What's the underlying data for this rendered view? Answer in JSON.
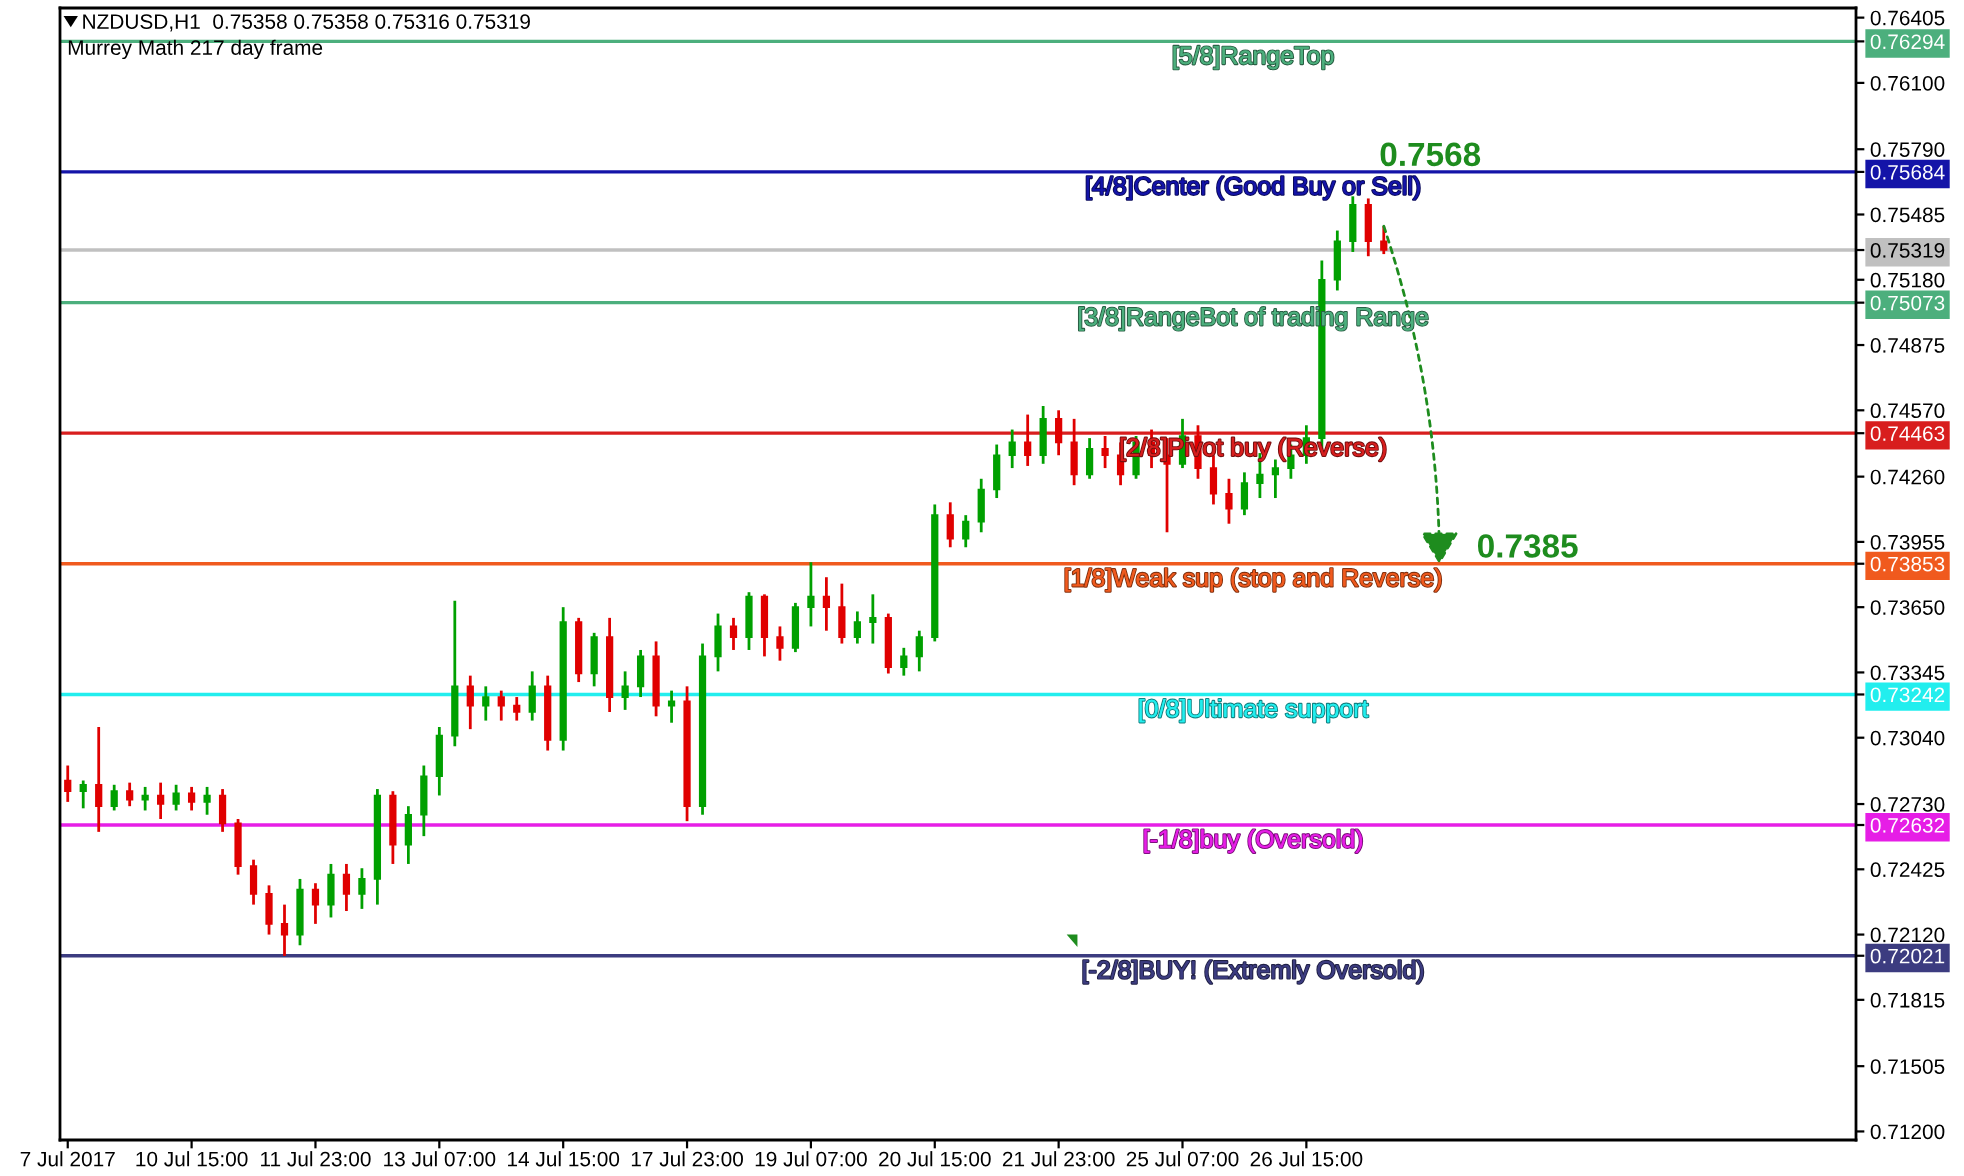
{
  "chart_data": {
    "type": "candlestick",
    "title": "NZDUSD,H1  0.75358 0.75358 0.75316 0.75319",
    "subtitle": "Murrey Math 217 day frame",
    "categories": [
      "7 Jul 2017",
      null,
      null,
      null,
      null,
      null,
      null,
      null,
      "10 Jul 15:00",
      null,
      null,
      null,
      null,
      null,
      null,
      null,
      "11 Jul 23:00",
      null,
      null,
      null,
      null,
      null,
      null,
      null,
      "13 Jul 07:00",
      null,
      null,
      null,
      null,
      null,
      null,
      null,
      "14 Jul 15:00",
      null,
      null,
      null,
      null,
      null,
      null,
      null,
      "17 Jul 23:00",
      null,
      null,
      null,
      null,
      null,
      null,
      null,
      "19 Jul 07:00",
      null,
      null,
      null,
      null,
      null,
      null,
      null,
      "20 Jul 15:00",
      null,
      null,
      null,
      null,
      null,
      null,
      null,
      "21 Jul 23:00",
      null,
      null,
      null,
      null,
      null,
      null,
      null,
      "25 Jul 07:00",
      null,
      null,
      null,
      null,
      null,
      null,
      null,
      "26 Jul 15:00",
      null,
      null,
      null,
      null,
      null,
      null,
      null,
      null,
      null,
      null,
      null,
      null,
      null,
      null,
      null,
      null,
      null,
      null,
      null,
      null,
      null,
      null,
      null,
      null,
      null,
      null,
      null,
      null,
      null,
      null,
      null,
      null,
      null,
      null,
      null
    ],
    "ohlc": [
      [
        0.7284,
        0.7291,
        0.7274,
        0.7279
      ],
      [
        0.7279,
        0.7284,
        0.7271,
        0.7282
      ],
      [
        0.7282,
        0.7309,
        0.726,
        0.7272
      ],
      [
        0.7272,
        0.7282,
        0.727,
        0.7279
      ],
      [
        0.7279,
        0.7283,
        0.7272,
        0.7275
      ],
      [
        0.7275,
        0.7281,
        0.727,
        0.7277
      ],
      [
        0.7277,
        0.7283,
        0.7266,
        0.7273
      ],
      [
        0.7273,
        0.7282,
        0.727,
        0.7278
      ],
      [
        0.7278,
        0.7281,
        0.727,
        0.7274
      ],
      [
        0.7274,
        0.7281,
        0.7268,
        0.7277
      ],
      [
        0.7277,
        0.728,
        0.726,
        0.7264
      ],
      [
        0.7264,
        0.7266,
        0.724,
        0.7244
      ],
      [
        0.7244,
        0.7247,
        0.7226,
        0.7231
      ],
      [
        0.7231,
        0.7235,
        0.7212,
        0.7217
      ],
      [
        0.7217,
        0.7226,
        0.7202,
        0.7212
      ],
      [
        0.7212,
        0.7238,
        0.7207,
        0.7233
      ],
      [
        0.7233,
        0.7236,
        0.7217,
        0.7226
      ],
      [
        0.7226,
        0.7245,
        0.722,
        0.724
      ],
      [
        0.724,
        0.7245,
        0.7223,
        0.7231
      ],
      [
        0.7231,
        0.7243,
        0.7224,
        0.7238
      ],
      [
        0.7238,
        0.728,
        0.7226,
        0.7277
      ],
      [
        0.7277,
        0.7279,
        0.7245,
        0.7254
      ],
      [
        0.7254,
        0.7272,
        0.7245,
        0.7268
      ],
      [
        0.7268,
        0.7291,
        0.7258,
        0.7286
      ],
      [
        0.7286,
        0.7309,
        0.7277,
        0.7305
      ],
      [
        0.7305,
        0.7368,
        0.73,
        0.7328
      ],
      [
        0.7328,
        0.7333,
        0.7308,
        0.7319
      ],
      [
        0.7319,
        0.7328,
        0.7312,
        0.7323
      ],
      [
        0.7323,
        0.7326,
        0.7312,
        0.7319
      ],
      [
        0.7319,
        0.7323,
        0.7312,
        0.7316
      ],
      [
        0.7316,
        0.7335,
        0.7312,
        0.7328
      ],
      [
        0.7328,
        0.7333,
        0.7298,
        0.7303
      ],
      [
        0.7303,
        0.7365,
        0.7298,
        0.7358
      ],
      [
        0.7358,
        0.736,
        0.733,
        0.7334
      ],
      [
        0.7334,
        0.7353,
        0.7328,
        0.7351
      ],
      [
        0.7351,
        0.736,
        0.7316,
        0.7323
      ],
      [
        0.7323,
        0.7335,
        0.7317,
        0.7328
      ],
      [
        0.7328,
        0.7345,
        0.7323,
        0.7342
      ],
      [
        0.7342,
        0.7349,
        0.7314,
        0.7319
      ],
      [
        0.7319,
        0.7326,
        0.7311,
        0.7321
      ],
      [
        0.7321,
        0.7328,
        0.7265,
        0.7272
      ],
      [
        0.7272,
        0.7348,
        0.7268,
        0.7342
      ],
      [
        0.7342,
        0.7362,
        0.7335,
        0.7356
      ],
      [
        0.7356,
        0.736,
        0.7345,
        0.7351
      ],
      [
        0.7351,
        0.7372,
        0.7345,
        0.737
      ],
      [
        0.737,
        0.7371,
        0.7342,
        0.7351
      ],
      [
        0.7351,
        0.7356,
        0.734,
        0.7346
      ],
      [
        0.7346,
        0.7367,
        0.7344,
        0.7365
      ],
      [
        0.7365,
        0.7386,
        0.7356,
        0.737
      ],
      [
        0.737,
        0.7379,
        0.7354,
        0.7365
      ],
      [
        0.7365,
        0.7376,
        0.7348,
        0.7351
      ],
      [
        0.7351,
        0.7363,
        0.7348,
        0.7358
      ],
      [
        0.7358,
        0.7371,
        0.7348,
        0.736
      ],
      [
        0.736,
        0.7362,
        0.7334,
        0.7337
      ],
      [
        0.7337,
        0.7346,
        0.7333,
        0.7342
      ],
      [
        0.7342,
        0.7354,
        0.7335,
        0.7351
      ],
      [
        0.7351,
        0.7413,
        0.7349,
        0.7408
      ],
      [
        0.7408,
        0.7414,
        0.7393,
        0.7397
      ],
      [
        0.7397,
        0.7408,
        0.7393,
        0.7405
      ],
      [
        0.7405,
        0.7425,
        0.74,
        0.742
      ],
      [
        0.742,
        0.7441,
        0.7416,
        0.7436
      ],
      [
        0.7436,
        0.7448,
        0.743,
        0.7442
      ],
      [
        0.7442,
        0.7455,
        0.7431,
        0.7436
      ],
      [
        0.7436,
        0.7459,
        0.7432,
        0.7453
      ],
      [
        0.7453,
        0.7457,
        0.7436,
        0.7442
      ],
      [
        0.7442,
        0.7453,
        0.7422,
        0.7427
      ],
      [
        0.7427,
        0.7444,
        0.7425,
        0.7439
      ],
      [
        0.7439,
        0.7445,
        0.743,
        0.7436
      ],
      [
        0.7436,
        0.7442,
        0.7422,
        0.7427
      ],
      [
        0.7427,
        0.7445,
        0.7425,
        0.7442
      ],
      [
        0.7442,
        0.7448,
        0.743,
        0.7436
      ],
      [
        0.7436,
        0.7444,
        0.74,
        0.7432
      ],
      [
        0.7432,
        0.7453,
        0.743,
        0.7445
      ],
      [
        0.7445,
        0.745,
        0.7425,
        0.743
      ],
      [
        0.743,
        0.7436,
        0.7413,
        0.7418
      ],
      [
        0.7418,
        0.7425,
        0.7404,
        0.7411
      ],
      [
        0.7411,
        0.7428,
        0.7408,
        0.7423
      ],
      [
        0.7423,
        0.7437,
        0.7416,
        0.7427
      ],
      [
        0.7427,
        0.7434,
        0.7416,
        0.743
      ],
      [
        0.743,
        0.7441,
        0.7425,
        0.7436
      ],
      [
        0.7436,
        0.745,
        0.7432,
        0.7444
      ],
      [
        0.7444,
        0.7527,
        0.7439,
        0.7518
      ],
      [
        0.7518,
        0.7541,
        0.7513,
        0.7536
      ],
      [
        0.7536,
        0.7557,
        0.7531,
        0.7553
      ],
      [
        0.7553,
        0.7556,
        0.7529,
        0.7536
      ],
      [
        0.7536,
        0.7543,
        0.753,
        0.7532
      ],
      null,
      null,
      null,
      null,
      null,
      null,
      null,
      null,
      null,
      null,
      null,
      null,
      null,
      null,
      null,
      null,
      null,
      null,
      null,
      null,
      null,
      null,
      null,
      null,
      null,
      null,
      null,
      null,
      null,
      null
    ],
    "colors": [
      "#e00000",
      "#00a000",
      "#e00000",
      "#00a000",
      "#e00000",
      "#00a000",
      "#e00000",
      "#00a000",
      "#e00000",
      "#00a000",
      "#e00000",
      "#e00000",
      "#e00000",
      "#e00000",
      "#e00000",
      "#00a000",
      "#e00000",
      "#00a000",
      "#e00000",
      "#00a000",
      "#00a000",
      "#e00000",
      "#00a000",
      "#00a000",
      "#00a000",
      "#00a000",
      "#e00000",
      "#00a000",
      "#e00000",
      "#e00000",
      "#00a000",
      "#e00000",
      "#00a000",
      "#e00000",
      "#00a000",
      "#e00000",
      "#00a000",
      "#00a000",
      "#e00000",
      "#00a000",
      "#e00000",
      "#00a000",
      "#00a000",
      "#e00000",
      "#00a000",
      "#e00000",
      "#e00000",
      "#00a000",
      "#00a000",
      "#e00000",
      "#e00000",
      "#00a000",
      "#00a000",
      "#e00000",
      "#00a000",
      "#00a000",
      "#00a000",
      "#e00000",
      "#00a000",
      "#00a000",
      "#00a000",
      "#00a000",
      "#e00000",
      "#00a000",
      "#e00000",
      "#e00000",
      "#00a000",
      "#e00000",
      "#e00000",
      "#00a000",
      "#e00000",
      "#e00000",
      "#00a000",
      "#e00000",
      "#e00000",
      "#e00000",
      "#00a000",
      "#00a000",
      "#00a000",
      "#00a000",
      "#00a000",
      "#00a000",
      "#00a000",
      "#00a000",
      "#e00000",
      "#e00000",
      null,
      null,
      null,
      null,
      null,
      null,
      null,
      null,
      null,
      null,
      null,
      null,
      null,
      null,
      null,
      null,
      null,
      null,
      null,
      null,
      null,
      null,
      null,
      null,
      null,
      null,
      null,
      null,
      null,
      null
    ],
    "ylim": [
      0.7116,
      0.7645
    ],
    "yticks": [
      0.76405,
      0.76294,
      0.75684,
      0.75319,
      0.75073,
      0.74463,
      0.73853,
      0.73242,
      0.72632,
      0.72021,
      {
        "value": 0.761,
        "label": "0.76100"
      },
      {
        "value": 0.7579,
        "label": "0.75790"
      },
      0.75485,
      {
        "value": 0.7518,
        "label": "0.75180"
      },
      0.74875,
      {
        "value": 0.7457,
        "label": "0.74570"
      },
      {
        "value": 0.7426,
        "label": "0.74260"
      },
      0.73955,
      {
        "value": 0.7365,
        "label": "0.73650"
      },
      0.73345,
      {
        "value": 0.7304,
        "label": "0.73040"
      },
      {
        "value": 0.7273,
        "label": "0.72730"
      },
      0.72425,
      {
        "value": 0.7212,
        "label": "0.72120"
      },
      0.71815,
      0.71505,
      {
        "value": 0.712,
        "label": "0.71200"
      }
    ],
    "ref_lines": [
      {
        "axis": "y",
        "value": 0.76294,
        "label": "[5/8]RangeTop",
        "color": "#4caf7d"
      },
      {
        "axis": "y",
        "value": 0.75684,
        "label": "[4/8]Center (Good Buy or Sell)",
        "color": "#1414a8"
      },
      {
        "axis": "y",
        "value": 0.75319,
        "label": null,
        "color": "#c0c0c0"
      },
      {
        "axis": "y",
        "value": 0.75073,
        "label": "[3/8]RangeBot of trading Range",
        "color": "#4caf7d"
      },
      {
        "axis": "y",
        "value": 0.74463,
        "label": "[2/8]Pivot buy (Reverse)",
        "color": "#d81e1e"
      },
      {
        "axis": "y",
        "value": 0.73853,
        "label": "[1/8]Weak sup (stop and Reverse)",
        "color": "#f05a1e"
      },
      {
        "axis": "y",
        "value": 0.73242,
        "label": "[0/8]Ultimate support",
        "color": "#22eeee"
      },
      {
        "axis": "y",
        "value": 0.72632,
        "label": "[-1/8]buy (Oversold)",
        "color": "#e61ee6"
      },
      {
        "axis": "y",
        "value": 0.72021,
        "label": "[-2/8]BUY! (Extremly Oversold)",
        "color": "#3c3c80"
      }
    ],
    "annotations": [
      {
        "text": "0.7568",
        "y": 0.7568
      },
      {
        "text": "0.7385",
        "y": 0.7385
      }
    ],
    "grid": false,
    "legend": false
  }
}
